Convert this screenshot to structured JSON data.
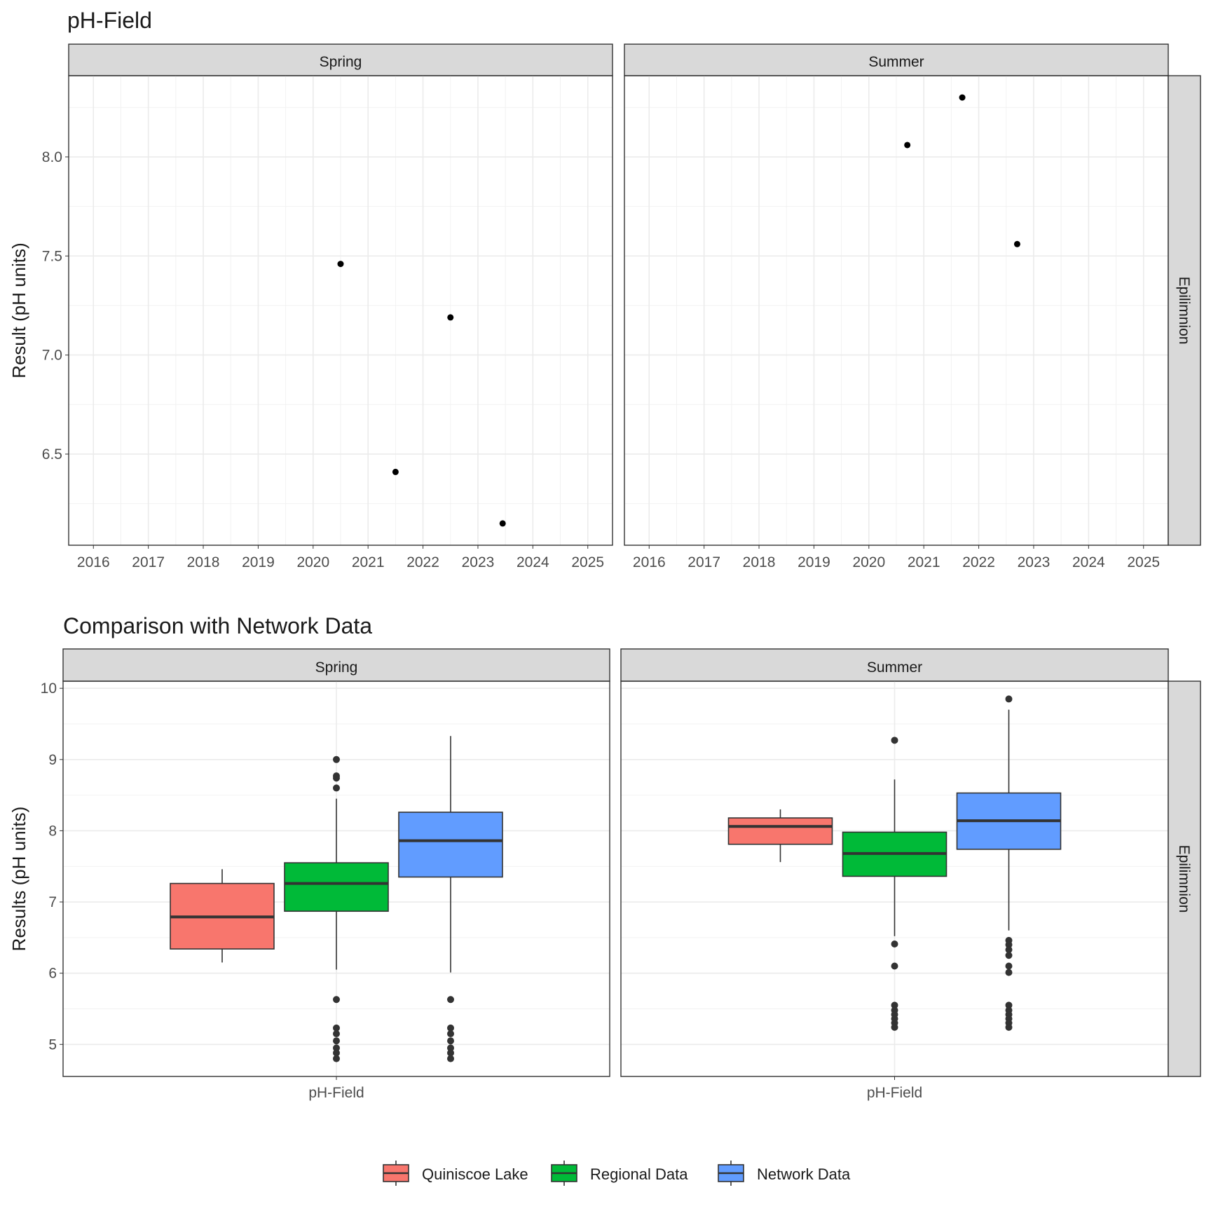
{
  "chart_data": [
    {
      "type": "scatter",
      "title": "pH-Field",
      "ylabel": "Result (pH units)",
      "xlabel": "",
      "strip_right": "Epilimnion",
      "xlim": [
        2015.55,
        2025.45
      ],
      "ylim": [
        6.04,
        8.41
      ],
      "x_ticks": [
        2016,
        2017,
        2018,
        2019,
        2020,
        2021,
        2022,
        2023,
        2024,
        2025
      ],
      "y_ticks": [
        6.5,
        7.0,
        7.5,
        8.0
      ],
      "y_tick_labels": [
        "6.5",
        "7.0",
        "7.5",
        "8.0"
      ],
      "grid": true,
      "facets": [
        {
          "name": "Spring",
          "points": [
            {
              "x": 2020.5,
              "y": 7.46
            },
            {
              "x": 2021.5,
              "y": 6.41
            },
            {
              "x": 2022.5,
              "y": 7.19
            },
            {
              "x": 2023.45,
              "y": 6.15
            }
          ]
        },
        {
          "name": "Summer",
          "points": [
            {
              "x": 2020.7,
              "y": 8.06
            },
            {
              "x": 2021.7,
              "y": 8.3
            },
            {
              "x": 2022.7,
              "y": 7.56
            }
          ]
        }
      ]
    },
    {
      "type": "box",
      "title": "Comparison with Network Data",
      "ylabel": "Results (pH units)",
      "xlabel": "",
      "category": "pH-Field",
      "strip_right": "Epilimnion",
      "ylim": [
        4.55,
        10.1
      ],
      "y_ticks": [
        5,
        6,
        7,
        8,
        9,
        10
      ],
      "y_tick_labels": [
        "5",
        "6",
        "7",
        "8",
        "9",
        "10"
      ],
      "grid": true,
      "legend": {
        "position": "bottom",
        "entries": [
          {
            "name": "Quiniscoe Lake",
            "color": "#F8766D"
          },
          {
            "name": "Regional Data",
            "color": "#00BA38"
          },
          {
            "name": "Network Data",
            "color": "#619CFF"
          }
        ]
      },
      "facets": [
        {
          "name": "Spring",
          "boxes": [
            {
              "series": "Quiniscoe Lake",
              "whisker_low": 6.15,
              "q1": 6.34,
              "median": 6.79,
              "q3": 7.26,
              "whisker_high": 7.46,
              "outliers": []
            },
            {
              "series": "Regional Data",
              "whisker_low": 6.05,
              "q1": 6.87,
              "median": 7.26,
              "q3": 7.55,
              "whisker_high": 8.45,
              "outliers": [
                9.0,
                8.77,
                8.74,
                8.6,
                5.63,
                5.23,
                5.15,
                5.05,
                4.95,
                4.88,
                4.8
              ]
            },
            {
              "series": "Network Data",
              "whisker_low": 6.01,
              "q1": 7.35,
              "median": 7.86,
              "q3": 8.26,
              "whisker_high": 9.33,
              "outliers": [
                5.63,
                5.23,
                5.15,
                5.05,
                4.95,
                4.88,
                4.8
              ]
            }
          ]
        },
        {
          "name": "Summer",
          "boxes": [
            {
              "series": "Quiniscoe Lake",
              "whisker_low": 7.56,
              "q1": 7.81,
              "median": 8.06,
              "q3": 8.18,
              "whisker_high": 8.3,
              "outliers": []
            },
            {
              "series": "Regional Data",
              "whisker_low": 6.52,
              "q1": 7.36,
              "median": 7.68,
              "q3": 7.98,
              "whisker_high": 8.72,
              "outliers": [
                9.27,
                6.41,
                6.1,
                5.55,
                5.48,
                5.42,
                5.36,
                5.3,
                5.24
              ]
            },
            {
              "series": "Network Data",
              "whisker_low": 6.6,
              "q1": 7.74,
              "median": 8.14,
              "q3": 8.53,
              "whisker_high": 9.7,
              "outliers": [
                9.85,
                6.46,
                6.4,
                6.33,
                6.25,
                6.1,
                6.01,
                5.55,
                5.48,
                5.42,
                5.36,
                5.3,
                5.24
              ]
            }
          ]
        }
      ]
    }
  ]
}
